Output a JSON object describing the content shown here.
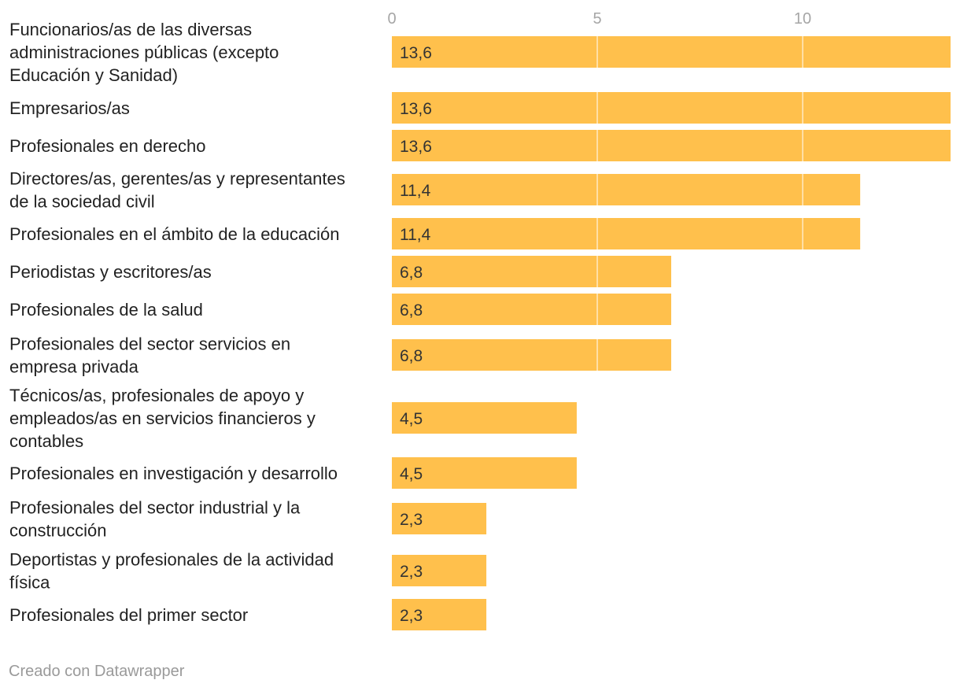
{
  "chart_data": {
    "type": "bar",
    "orientation": "horizontal",
    "categories": [
      "Funcionarios/as de las diversas administraciones públicas (excepto Educación y Sanidad)",
      "Empresarios/as",
      "Profesionales en derecho",
      "Directores/as, gerentes/as y representantes de la sociedad civil",
      "Profesionales en el ámbito de la educación",
      "Periodistas y escritores/as",
      "Profesionales de la salud",
      "Profesionales del sector servicios en empresa privada",
      "Técnicos/as, profesionales de apoyo y empleados/as en servicios financieros y contables",
      "Profesionales en investigación y desarrollo",
      "Profesionales del sector industrial y la construcción",
      "Deportistas y profesionales de la actividad física",
      "Profesionales del primer sector"
    ],
    "category_lines": [
      [
        "Funcionarios/as de las diversas",
        "administraciones públicas (excepto",
        "Educación y Sanidad)"
      ],
      [
        "Empresarios/as"
      ],
      [
        "Profesionales en derecho"
      ],
      [
        "Directores/as, gerentes/as y representantes",
        "de la sociedad civil"
      ],
      [
        "Profesionales en el ámbito de la educación"
      ],
      [
        "Periodistas y escritores/as"
      ],
      [
        "Profesionales de la salud"
      ],
      [
        "Profesionales del sector servicios en",
        "empresa privada"
      ],
      [
        "Técnicos/as, profesionales de apoyo y",
        "empleados/as en servicios financieros y",
        "contables"
      ],
      [
        "Profesionales en investigación y desarrollo"
      ],
      [
        "Profesionales del sector industrial y la",
        "construcción"
      ],
      [
        "Deportistas y profesionales de la actividad",
        "física"
      ],
      [
        "Profesionales del primer sector"
      ]
    ],
    "values": [
      13.6,
      13.6,
      13.6,
      11.4,
      11.4,
      6.8,
      6.8,
      6.8,
      4.5,
      4.5,
      2.3,
      2.3,
      2.3
    ],
    "value_labels": [
      "13,6",
      "13,6",
      "13,6",
      "11,4",
      "11,4",
      "6,8",
      "6,8",
      "6,8",
      "4,5",
      "4,5",
      "2,3",
      "2,3",
      "2,3"
    ],
    "x_ticks": [
      0,
      5,
      10
    ],
    "x_tick_labels": [
      "0",
      "5",
      "10"
    ],
    "xlim": [
      0,
      13.6
    ],
    "title": "",
    "xlabel": "",
    "ylabel": "",
    "grid": true,
    "colors": {
      "bar": "#ffc04c",
      "grid": "#ffffff",
      "category_text": "#222222",
      "value_text": "#333333",
      "tick_text": "#a6a6a6"
    }
  },
  "footer": {
    "credit": "Creado con Datawrapper"
  }
}
